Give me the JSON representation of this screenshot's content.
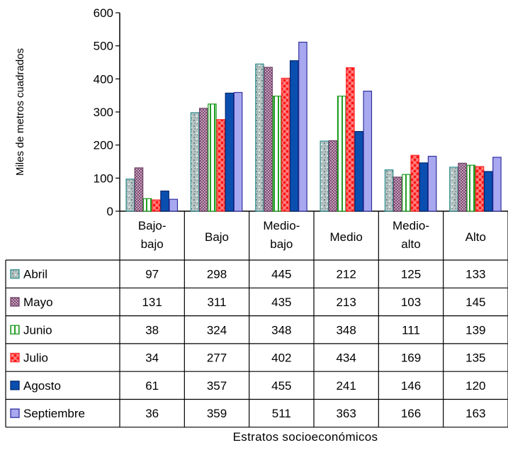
{
  "chart_data": {
    "type": "bar",
    "title": "",
    "xlabel": "Estratos socioeconómicos",
    "ylabel": "Miles de metros cuadrados",
    "ylim": [
      0,
      600
    ],
    "yticks": [
      "0",
      "100",
      "200",
      "300",
      "400",
      "500",
      "600"
    ],
    "ytick_values": [
      0,
      100,
      200,
      300,
      400,
      500,
      600
    ],
    "grid": false,
    "legend": "data-table",
    "categories": [
      [
        "Bajo-",
        "bajo"
      ],
      [
        "Bajo"
      ],
      [
        "Medio-",
        "bajo"
      ],
      [
        "Medio"
      ],
      [
        "Medio-",
        "alto"
      ],
      [
        "Alto"
      ]
    ],
    "series": [
      {
        "name": "Abril",
        "values": [
          97,
          298,
          445,
          212,
          125,
          133
        ],
        "labels": [
          "97",
          "298",
          "445",
          "212",
          "125",
          "133"
        ],
        "color": "#9ab0b0",
        "border": "#2f8f8f"
      },
      {
        "name": "Mayo",
        "values": [
          131,
          311,
          435,
          213,
          103,
          145
        ],
        "labels": [
          "131",
          "311",
          "435",
          "213",
          "103",
          "145"
        ],
        "color": "#a06a90",
        "border": "#6e3f66"
      },
      {
        "name": "Junio",
        "values": [
          38,
          324,
          348,
          348,
          111,
          139
        ],
        "labels": [
          "38",
          "324",
          "348",
          "348",
          "111",
          "139"
        ],
        "color": "#ffffff",
        "border": "#1f9a1f"
      },
      {
        "name": "Julio",
        "values": [
          34,
          277,
          402,
          434,
          169,
          135
        ],
        "labels": [
          "34",
          "277",
          "402",
          "434",
          "169",
          "135"
        ],
        "color": "#ff2a2a",
        "border": "#ff2a2a"
      },
      {
        "name": "Agosto",
        "values": [
          61,
          357,
          455,
          241,
          146,
          120
        ],
        "labels": [
          "61",
          "357",
          "455",
          "241",
          "146",
          "120"
        ],
        "color": "#0a4fb0",
        "border": "#00266e"
      },
      {
        "name": "Septiembre",
        "values": [
          36,
          359,
          511,
          363,
          166,
          163
        ],
        "labels": [
          "36",
          "359",
          "511",
          "363",
          "166",
          "163"
        ],
        "color": "#a8a8f0",
        "border": "#3030a0"
      }
    ]
  }
}
